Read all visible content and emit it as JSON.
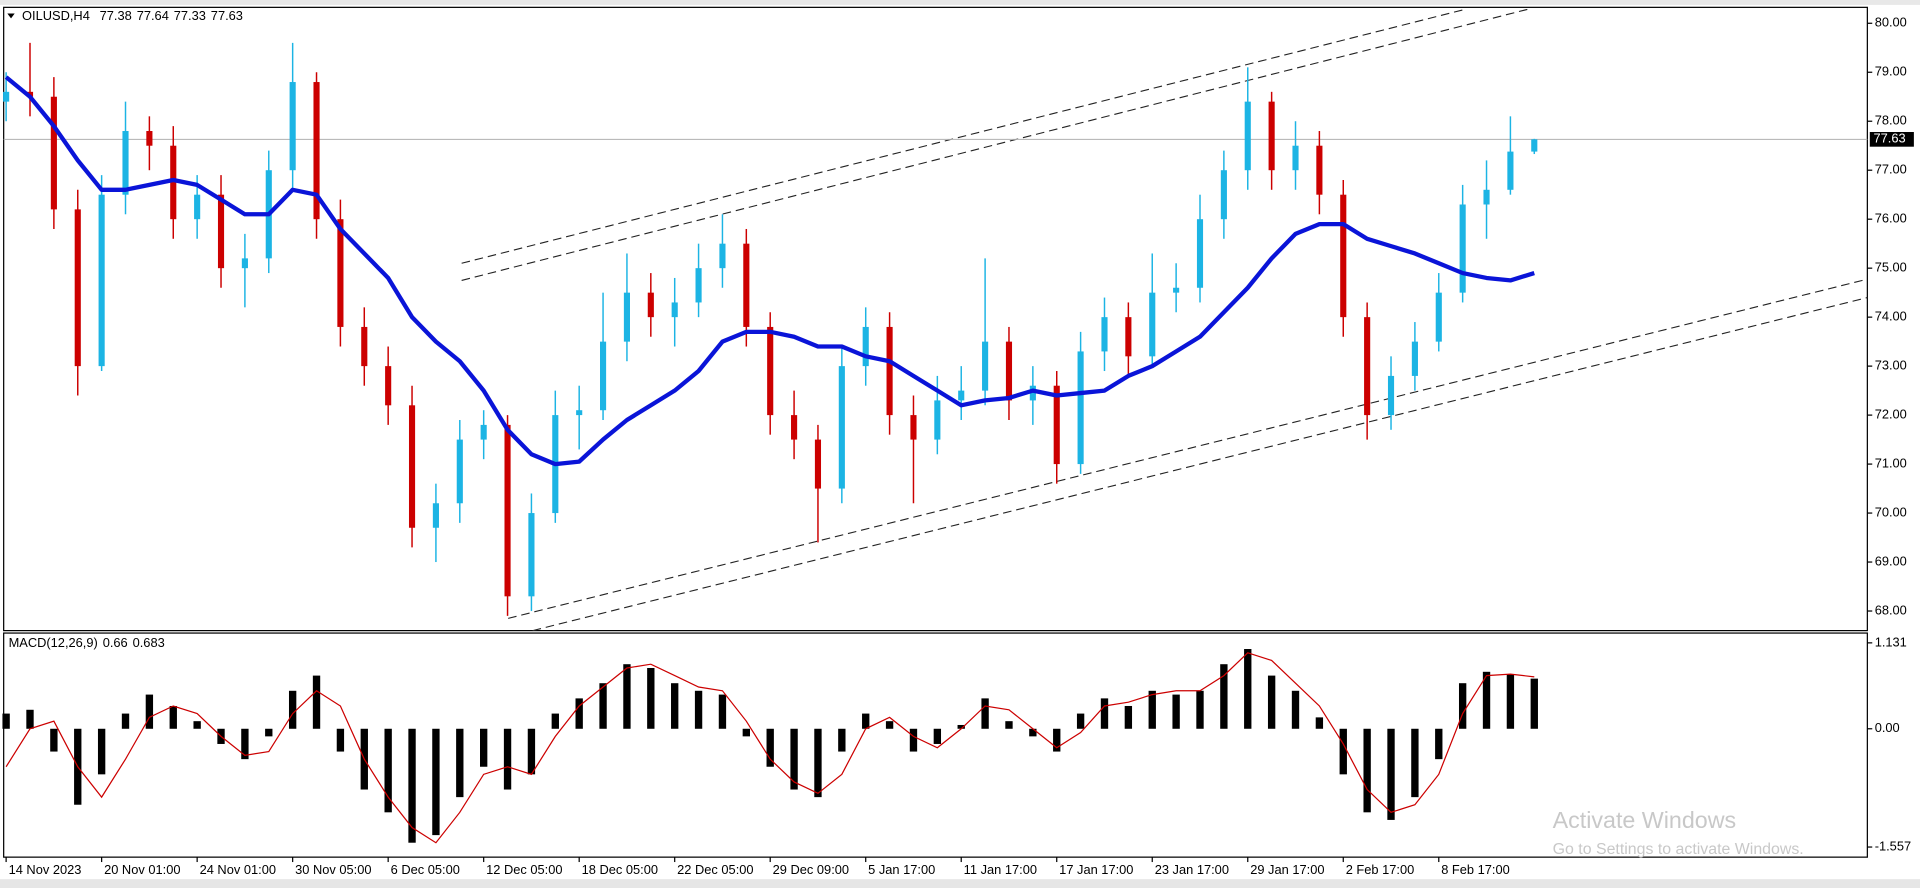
{
  "chart_data": {
    "type": "candlestick",
    "title": "OILUSD,H4",
    "categories": [
      "14 Nov 2023",
      null,
      null,
      null,
      "20 Nov 01:00",
      null,
      null,
      null,
      "24 Nov 01:00",
      null,
      null,
      null,
      "30 Nov 05:00",
      null,
      null,
      null,
      "6 Dec 05:00",
      null,
      null,
      null,
      "12 Dec 05:00",
      null,
      null,
      null,
      "18 Dec 05:00",
      null,
      null,
      null,
      "22 Dec 05:00",
      null,
      null,
      null,
      "29 Dec 09:00",
      null,
      null,
      null,
      "5 Jan 17:00",
      null,
      null,
      null,
      "11 Jan 17:00",
      null,
      null,
      null,
      "17 Jan 17:00",
      null,
      null,
      null,
      "23 Jan 17:00",
      null,
      null,
      null,
      "29 Jan 17:00",
      null,
      null,
      null,
      "2 Feb 17:00",
      null,
      null,
      null,
      "8 Feb 17:00",
      null,
      null,
      null,
      null
    ],
    "open": [
      78.4,
      78.6,
      78.5,
      76.2,
      73.0,
      76.5,
      77.8,
      77.5,
      76.0,
      76.5,
      75.0,
      75.2,
      77.0,
      78.8,
      76.0,
      73.8,
      73.0,
      72.2,
      69.7,
      70.2,
      71.5,
      71.8,
      68.3,
      70.0,
      72.0,
      72.1,
      73.5,
      74.5,
      74.0,
      74.3,
      75.0,
      75.5,
      73.8,
      72.0,
      71.5,
      70.5,
      73.0,
      73.8,
      72.0,
      71.5,
      72.3,
      72.5,
      73.5,
      72.3,
      72.6,
      71.0,
      73.3,
      74.0,
      73.2,
      74.5,
      74.6,
      76.0,
      77.0,
      78.4,
      77.0,
      77.5,
      76.5,
      74.0,
      72.0,
      72.8,
      73.5,
      74.5,
      76.3,
      76.6,
      77.38
    ],
    "high": [
      79.0,
      79.6,
      78.9,
      76.6,
      76.9,
      78.4,
      78.1,
      77.9,
      76.9,
      76.9,
      75.7,
      77.4,
      79.6,
      79.0,
      76.4,
      74.2,
      73.4,
      72.6,
      70.6,
      71.9,
      72.1,
      72.0,
      70.4,
      72.5,
      72.6,
      74.5,
      75.3,
      74.9,
      74.8,
      75.5,
      76.1,
      75.8,
      74.1,
      72.5,
      71.8,
      73.4,
      74.2,
      74.1,
      72.4,
      72.8,
      73.0,
      75.2,
      73.8,
      73.0,
      72.9,
      73.7,
      74.4,
      74.3,
      75.3,
      75.1,
      76.5,
      77.4,
      79.1,
      78.6,
      78.0,
      77.8,
      76.8,
      74.3,
      73.2,
      73.9,
      74.9,
      76.7,
      77.2,
      78.1,
      77.64
    ],
    "low": [
      78.0,
      78.1,
      75.8,
      72.4,
      72.9,
      76.1,
      77.0,
      75.6,
      75.6,
      74.6,
      74.2,
      74.9,
      76.6,
      75.6,
      73.4,
      72.6,
      71.8,
      69.3,
      69.0,
      69.8,
      71.1,
      67.9,
      68.0,
      69.8,
      71.3,
      71.9,
      73.1,
      73.6,
      73.4,
      74.0,
      74.6,
      73.4,
      71.6,
      71.1,
      69.4,
      70.2,
      72.6,
      71.6,
      70.2,
      71.2,
      71.9,
      72.2,
      71.9,
      71.8,
      70.6,
      70.8,
      72.9,
      72.8,
      73.0,
      74.1,
      74.3,
      75.6,
      76.6,
      76.6,
      76.6,
      76.1,
      73.6,
      71.5,
      71.7,
      72.5,
      73.3,
      74.3,
      75.6,
      76.5,
      77.33
    ],
    "close": [
      78.6,
      78.5,
      76.2,
      73.0,
      76.5,
      77.8,
      77.5,
      76.0,
      76.5,
      75.0,
      75.2,
      77.0,
      78.8,
      76.0,
      73.8,
      73.0,
      72.2,
      69.7,
      70.2,
      71.5,
      71.8,
      68.3,
      70.0,
      72.0,
      72.1,
      73.5,
      74.5,
      74.0,
      74.3,
      75.0,
      75.5,
      73.8,
      72.0,
      71.5,
      70.5,
      73.0,
      73.8,
      72.0,
      71.5,
      72.3,
      72.5,
      73.5,
      72.3,
      72.6,
      71.0,
      73.3,
      74.0,
      73.2,
      74.5,
      74.6,
      76.0,
      77.0,
      78.4,
      77.0,
      77.5,
      76.5,
      74.0,
      72.0,
      72.8,
      73.5,
      74.5,
      76.3,
      76.6,
      77.38,
      77.63
    ],
    "up_color": "#1cb4e4",
    "down_color": "#cc0000",
    "ylim": [
      67.6,
      80.325
    ],
    "yticks": [
      {
        "value": 68,
        "label": "68.00"
      },
      {
        "value": 69,
        "label": "69.00"
      },
      {
        "value": 70,
        "label": "70.00"
      },
      {
        "value": 71,
        "label": "71.00"
      },
      {
        "value": 72,
        "label": "72.00"
      },
      {
        "value": 73,
        "label": "73.00"
      },
      {
        "value": 74,
        "label": "74.00"
      },
      {
        "value": 75,
        "label": "75.00"
      },
      {
        "value": 76,
        "label": "76.00"
      },
      {
        "value": 77,
        "label": "77.00"
      },
      {
        "value": 78,
        "label": "78.00"
      },
      {
        "value": 79,
        "label": "79.00"
      },
      {
        "value": 80,
        "label": "80.00"
      }
    ],
    "ma": {
      "color": "#0a14d8",
      "values": [
        78.9,
        78.5,
        77.9,
        77.2,
        76.6,
        76.6,
        76.7,
        76.8,
        76.7,
        76.4,
        76.1,
        76.1,
        76.6,
        76.5,
        75.8,
        75.3,
        74.8,
        74.0,
        73.5,
        73.1,
        72.5,
        71.7,
        71.2,
        71.0,
        71.05,
        71.5,
        71.9,
        72.2,
        72.5,
        72.9,
        73.5,
        73.7,
        73.7,
        73.6,
        73.4,
        73.4,
        73.2,
        73.1,
        72.8,
        72.5,
        72.2,
        72.3,
        72.35,
        72.5,
        72.4,
        72.45,
        72.5,
        72.8,
        73.0,
        73.3,
        73.6,
        74.1,
        74.6,
        75.2,
        75.7,
        75.9,
        75.9,
        75.6,
        75.45,
        75.3,
        75.1,
        74.9,
        74.8,
        74.75,
        74.9
      ]
    },
    "macd": {
      "title": "MACD(12,26,9)",
      "ylim": [
        -1.69,
        1.26
      ],
      "yticks": [
        {
          "value": -1.557,
          "label": "-1.557"
        },
        {
          "value": 0,
          "label": "0.00"
        },
        1.131
      ],
      "histogram": {
        "color": "#000000",
        "values": [
          0.2,
          0.25,
          -0.3,
          -1.0,
          -0.6,
          0.2,
          0.45,
          0.3,
          0.1,
          -0.2,
          -0.4,
          -0.1,
          0.5,
          0.7,
          -0.3,
          -0.8,
          -1.1,
          -1.5,
          -1.4,
          -0.9,
          -0.5,
          -0.8,
          -0.6,
          0.2,
          0.4,
          0.6,
          0.85,
          0.8,
          0.6,
          0.5,
          0.45,
          -0.1,
          -0.5,
          -0.8,
          -0.9,
          -0.3,
          0.2,
          0.1,
          -0.3,
          -0.2,
          0.05,
          0.4,
          0.1,
          -0.1,
          -0.3,
          0.2,
          0.4,
          0.3,
          0.5,
          0.45,
          0.5,
          0.85,
          1.05,
          0.7,
          0.5,
          0.15,
          -0.6,
          -1.1,
          -1.2,
          -0.9,
          -0.4,
          0.6,
          0.75,
          0.72,
          0.66
        ]
      },
      "signal": {
        "color": "#cc0000",
        "values": [
          -0.5,
          0.0,
          0.1,
          -0.5,
          -0.9,
          -0.4,
          0.15,
          0.3,
          0.2,
          -0.1,
          -0.35,
          -0.3,
          0.2,
          0.5,
          0.3,
          -0.4,
          -0.9,
          -1.3,
          -1.5,
          -1.1,
          -0.6,
          -0.5,
          -0.6,
          -0.1,
          0.3,
          0.55,
          0.8,
          0.85,
          0.7,
          0.55,
          0.5,
          0.1,
          -0.4,
          -0.7,
          -0.85,
          -0.6,
          0.0,
          0.15,
          -0.1,
          -0.25,
          0.0,
          0.3,
          0.25,
          0.0,
          -0.25,
          -0.05,
          0.3,
          0.35,
          0.45,
          0.5,
          0.5,
          0.7,
          1.0,
          0.9,
          0.6,
          0.3,
          -0.2,
          -0.8,
          -1.1,
          -1.0,
          -0.6,
          0.2,
          0.7,
          0.72,
          0.683
        ]
      }
    },
    "annotations": [
      "Activate Windows",
      "Go to Settings to activate Windows."
    ]
  }
}
